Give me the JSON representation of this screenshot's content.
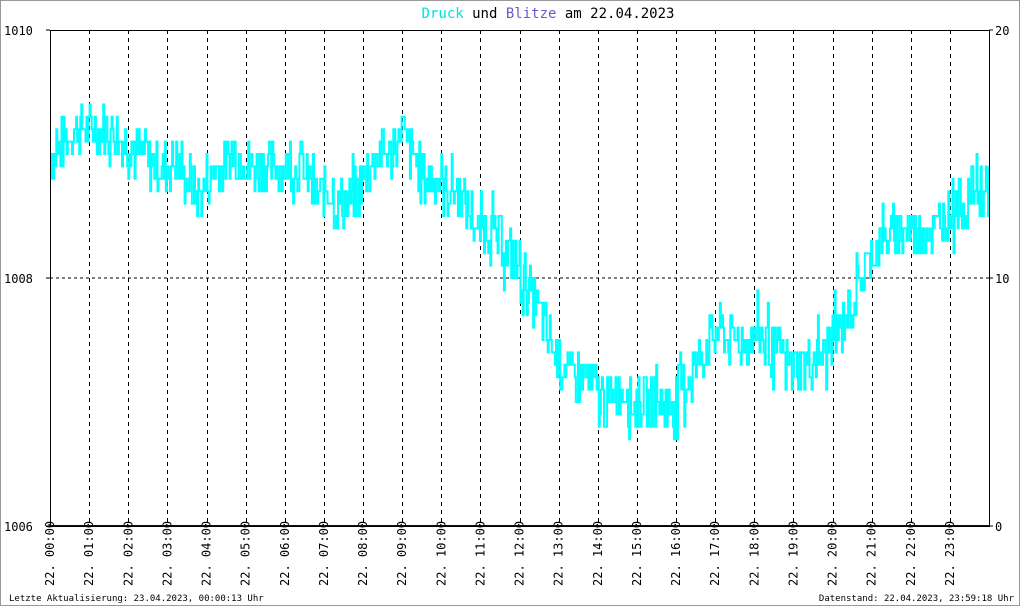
{
  "title": {
    "series1": "Druck",
    "connector": "und",
    "series2": "Blitze",
    "prefix": "am",
    "date": "22.04.2023"
  },
  "footer": {
    "left": "Letzte Aktualisierung: 23.04.2023, 00:00:13 Uhr",
    "right": "Datenstand: 22.04.2023, 23:59:18 Uhr"
  },
  "colors": {
    "pressure": "#00ffff",
    "lightning": "#6a5acd",
    "baseline": "#000080",
    "grid": "#000000"
  },
  "chart_data": {
    "type": "line",
    "title": "Druck und Blitze am 22.04.2023",
    "x_tick_labels": [
      "22. 00:00",
      "22. 01:00",
      "22. 02:00",
      "22. 03:00",
      "22. 04:00",
      "22. 05:00",
      "22. 06:00",
      "22. 07:00",
      "22. 08:00",
      "22. 09:00",
      "22. 10:00",
      "22. 11:00",
      "22. 12:00",
      "22. 13:00",
      "22. 14:00",
      "22. 15:00",
      "22. 16:00",
      "22. 17:00",
      "22. 18:00",
      "22. 19:00",
      "22. 20:00",
      "22. 21:00",
      "22. 22:00",
      "22. 23:00"
    ],
    "left_axis": {
      "ylim": [
        1006,
        1010
      ],
      "ticks": [
        "1006",
        "1008",
        "1010"
      ]
    },
    "right_axis": {
      "ylim": [
        0,
        20
      ],
      "ticks": [
        "0",
        "10",
        "20"
      ]
    },
    "xlim_hours": [
      0,
      24
    ],
    "grid": true,
    "series": [
      {
        "name": "Druck",
        "axis": "left",
        "x_hours": [
          0.0,
          0.25,
          0.5,
          0.75,
          1.0,
          1.25,
          1.5,
          1.75,
          2.0,
          2.25,
          2.5,
          2.75,
          3.0,
          3.25,
          3.5,
          3.75,
          4.0,
          4.25,
          4.5,
          4.75,
          5.0,
          5.25,
          5.5,
          5.75,
          6.0,
          6.25,
          6.5,
          6.75,
          7.0,
          7.25,
          7.5,
          7.75,
          8.0,
          8.25,
          8.5,
          8.75,
          9.0,
          9.25,
          9.5,
          9.75,
          10.0,
          10.25,
          10.5,
          10.75,
          11.0,
          11.25,
          11.5,
          11.75,
          12.0,
          12.25,
          12.5,
          12.75,
          13.0,
          13.25,
          13.5,
          13.75,
          14.0,
          14.25,
          14.5,
          14.75,
          15.0,
          15.25,
          15.5,
          15.75,
          16.0,
          16.25,
          16.5,
          16.75,
          17.0,
          17.25,
          17.5,
          17.75,
          18.0,
          18.25,
          18.5,
          18.75,
          19.0,
          19.25,
          19.5,
          19.75,
          20.0,
          20.25,
          20.5,
          20.75,
          21.0,
          21.25,
          21.5,
          21.75,
          22.0,
          22.25,
          22.5,
          22.75,
          23.0,
          23.25,
          23.5,
          23.75,
          24.0
        ],
        "values": [
          1008.95,
          1009.05,
          1009.15,
          1009.25,
          1009.2,
          1009.2,
          1009.2,
          1009.15,
          1009.1,
          1009.0,
          1008.95,
          1008.9,
          1008.95,
          1008.9,
          1008.8,
          1008.7,
          1008.75,
          1008.9,
          1008.95,
          1009.0,
          1008.95,
          1008.9,
          1008.85,
          1008.85,
          1008.9,
          1008.95,
          1008.85,
          1008.7,
          1008.65,
          1008.65,
          1008.6,
          1008.65,
          1008.8,
          1008.95,
          1009.0,
          1009.05,
          1009.2,
          1009.0,
          1008.85,
          1008.8,
          1008.75,
          1008.7,
          1008.65,
          1008.5,
          1008.4,
          1008.35,
          1008.3,
          1008.2,
          1008.05,
          1007.9,
          1007.7,
          1007.5,
          1007.35,
          1007.25,
          1007.2,
          1007.15,
          1007.05,
          1007.0,
          1007.1,
          1007.05,
          1007.0,
          1007.05,
          1007.0,
          1007.0,
          1007.05,
          1007.15,
          1007.3,
          1007.45,
          1007.55,
          1007.55,
          1007.5,
          1007.5,
          1007.55,
          1007.5,
          1007.4,
          1007.35,
          1007.3,
          1007.3,
          1007.35,
          1007.4,
          1007.5,
          1007.65,
          1007.8,
          1008.0,
          1008.2,
          1008.3,
          1008.35,
          1008.35,
          1008.35,
          1008.35,
          1008.4,
          1008.45,
          1008.55,
          1008.6,
          1008.65,
          1008.7,
          1008.7
        ]
      },
      {
        "name": "Blitze",
        "axis": "right",
        "x_hours": [
          0,
          24
        ],
        "values": [
          0,
          0
        ]
      }
    ]
  }
}
